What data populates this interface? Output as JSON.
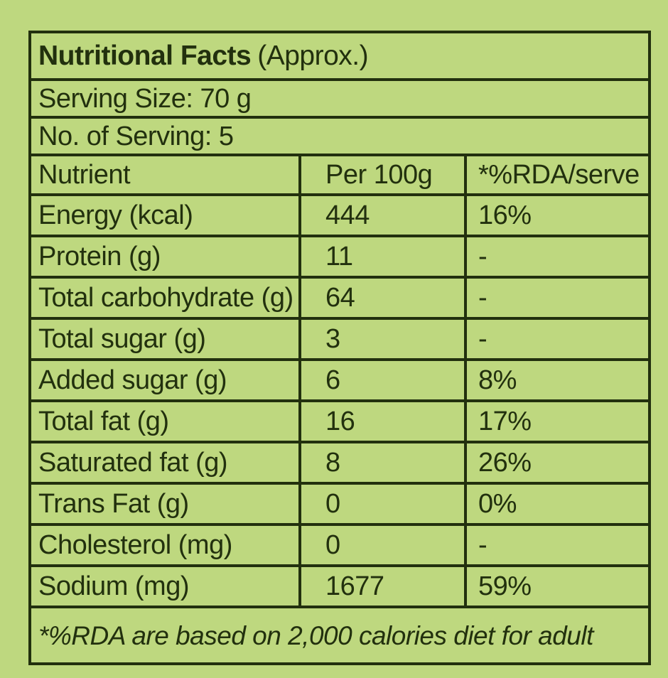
{
  "theme": {
    "background_color": "#bed87f",
    "border_color": "#22300e",
    "text_color": "#22300e"
  },
  "label": {
    "title": "Nutritional Facts",
    "title_qualifier": "(Approx.)",
    "serving_size": "Serving Size: 70 g",
    "servings_count": "No. of Serving: 5",
    "footnote": "*%RDA are based on 2,000 calories diet for adult"
  },
  "table": {
    "headers": [
      "Nutrient",
      "Per 100g",
      "*%RDA/serve"
    ],
    "rows": [
      {
        "nutrient": "Energy (kcal)",
        "per100g": "444",
        "rda": "16%"
      },
      {
        "nutrient": "Protein (g)",
        "per100g": "11",
        "rda": "-"
      },
      {
        "nutrient": "Total carbohydrate (g)",
        "per100g": "64",
        "rda": "-"
      },
      {
        "nutrient": "Total sugar (g)",
        "per100g": "3",
        "rda": "-"
      },
      {
        "nutrient": "Added sugar (g)",
        "per100g": "6",
        "rda": "8%"
      },
      {
        "nutrient": "Total fat (g)",
        "per100g": "16",
        "rda": "17%"
      },
      {
        "nutrient": "Saturated fat (g)",
        "per100g": "8",
        "rda": "26%"
      },
      {
        "nutrient": "Trans Fat (g)",
        "per100g": "0",
        "rda": "0%"
      },
      {
        "nutrient": "Cholesterol (mg)",
        "per100g": "0",
        "rda": "-"
      },
      {
        "nutrient": "Sodium (mg)",
        "per100g": "1677",
        "rda": "59%"
      }
    ]
  }
}
